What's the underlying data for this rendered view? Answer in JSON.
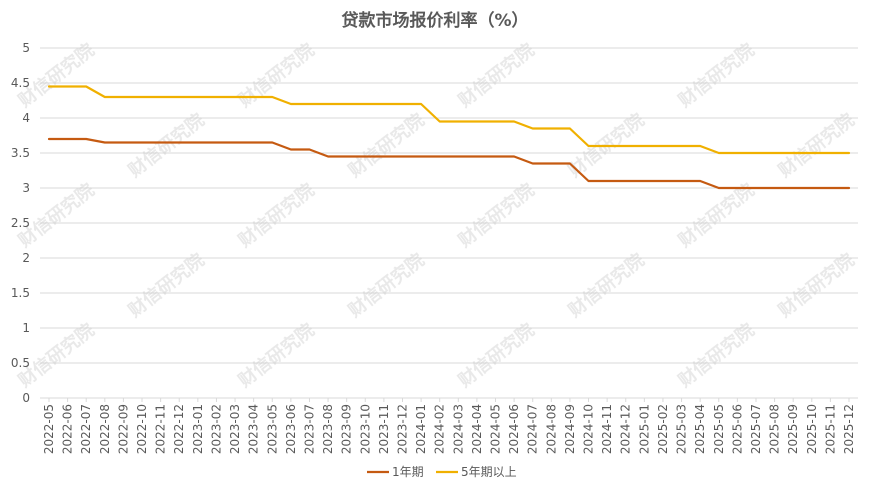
{
  "chart_data": {
    "type": "line",
    "title": "贷款市场报价利率（%）",
    "xlabel": "",
    "ylabel": "",
    "ylim": [
      0,
      5
    ],
    "yticks": [
      "0",
      "0.5",
      "1",
      "1.5",
      "2",
      "2.5",
      "3",
      "3.5",
      "4",
      "4.5",
      "5"
    ],
    "grid": true,
    "legend_position": "bottom-center",
    "x": [
      "2022-05",
      "2022-06",
      "2022-07",
      "2022-08",
      "2022-09",
      "2022-10",
      "2022-11",
      "2022-12",
      "2023-01",
      "2023-02",
      "2023-03",
      "2023-04",
      "2023-05",
      "2023-06",
      "2023-07",
      "2023-08",
      "2023-09",
      "2023-10",
      "2023-11",
      "2023-12",
      "2024-01",
      "2024-02",
      "2024-03",
      "2024-04",
      "2024-05",
      "2024-06",
      "2024-07",
      "2024-08",
      "2024-09",
      "2024-10",
      "2024-11",
      "2024-12",
      "2025-01",
      "2025-02",
      "2025-03",
      "2025-04",
      "2025-05",
      "2025-06",
      "2025-07",
      "2025-08",
      "2025-09",
      "2025-10",
      "2025-11",
      "2025-12"
    ],
    "series": [
      {
        "name": "1年期",
        "color": "#c55a11",
        "values": [
          3.7,
          3.7,
          3.7,
          3.65,
          3.65,
          3.65,
          3.65,
          3.65,
          3.65,
          3.65,
          3.65,
          3.65,
          3.65,
          3.55,
          3.55,
          3.45,
          3.45,
          3.45,
          3.45,
          3.45,
          3.45,
          3.45,
          3.45,
          3.45,
          3.45,
          3.45,
          3.35,
          3.35,
          3.35,
          3.1,
          3.1,
          3.1,
          3.1,
          3.1,
          3.1,
          3.1,
          3.0,
          3.0,
          3.0,
          3.0,
          3.0,
          3.0,
          3.0,
          3.0
        ]
      },
      {
        "name": "5年期以上",
        "color": "#f0b000",
        "values": [
          4.45,
          4.45,
          4.45,
          4.3,
          4.3,
          4.3,
          4.3,
          4.3,
          4.3,
          4.3,
          4.3,
          4.3,
          4.3,
          4.2,
          4.2,
          4.2,
          4.2,
          4.2,
          4.2,
          4.2,
          4.2,
          3.95,
          3.95,
          3.95,
          3.95,
          3.95,
          3.85,
          3.85,
          3.85,
          3.6,
          3.6,
          3.6,
          3.6,
          3.6,
          3.6,
          3.6,
          3.5,
          3.5,
          3.5,
          3.5,
          3.5,
          3.5,
          3.5,
          3.5
        ]
      }
    ]
  },
  "watermark": "财信研究院"
}
